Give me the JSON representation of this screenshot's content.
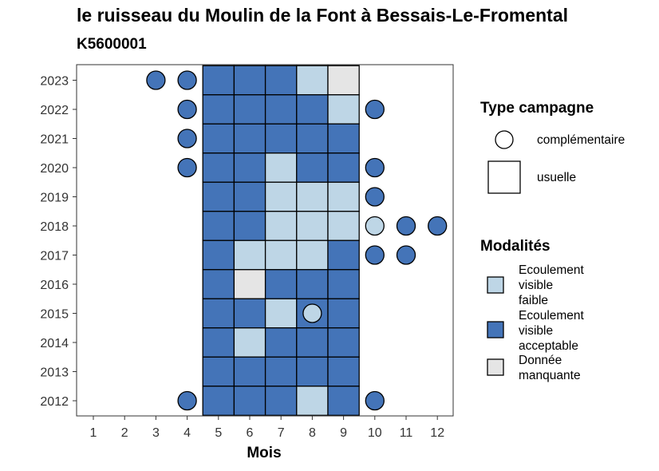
{
  "colors": {
    "faible": "#bed6e6",
    "acceptable": "#4474b8",
    "manquante": "#e5e5e5",
    "outline": "#000000",
    "panel_border": "#333333"
  },
  "chart_data": {
    "type": "heatmap",
    "title": "le ruisseau du Moulin de la Font à Bessais-Le-Fromental",
    "subtitle": "K5600001",
    "xlabel": "Mois",
    "ylabel": "",
    "x_ticks": [
      1,
      2,
      3,
      4,
      5,
      6,
      7,
      8,
      9,
      10,
      11,
      12
    ],
    "y_ticks": [
      2012,
      2013,
      2014,
      2015,
      2016,
      2017,
      2018,
      2019,
      2020,
      2021,
      2022,
      2023
    ],
    "grid": false,
    "legend_position": "right",
    "legends": [
      {
        "title": "Type campagne",
        "entries": [
          {
            "label": "complémentaire",
            "shape": "circle"
          },
          {
            "label": "usuelle",
            "shape": "square"
          }
        ]
      },
      {
        "title": "Modalités",
        "entries": [
          {
            "key": "faible",
            "label_lines": [
              "Ecoulement",
              "visible",
              "faible"
            ]
          },
          {
            "key": "acceptable",
            "label_lines": [
              "Ecoulement",
              "visible",
              "acceptable"
            ]
          },
          {
            "key": "manquante",
            "label_lines": [
              "Donnée",
              "manquante"
            ]
          }
        ]
      }
    ],
    "usuelle": [
      {
        "year": 2023,
        "month": 5,
        "value": "acceptable"
      },
      {
        "year": 2023,
        "month": 6,
        "value": "acceptable"
      },
      {
        "year": 2023,
        "month": 7,
        "value": "acceptable"
      },
      {
        "year": 2023,
        "month": 8,
        "value": "faible"
      },
      {
        "year": 2023,
        "month": 9,
        "value": "manquante"
      },
      {
        "year": 2022,
        "month": 5,
        "value": "acceptable"
      },
      {
        "year": 2022,
        "month": 6,
        "value": "acceptable"
      },
      {
        "year": 2022,
        "month": 7,
        "value": "acceptable"
      },
      {
        "year": 2022,
        "month": 8,
        "value": "acceptable"
      },
      {
        "year": 2022,
        "month": 9,
        "value": "faible"
      },
      {
        "year": 2021,
        "month": 5,
        "value": "acceptable"
      },
      {
        "year": 2021,
        "month": 6,
        "value": "acceptable"
      },
      {
        "year": 2021,
        "month": 7,
        "value": "acceptable"
      },
      {
        "year": 2021,
        "month": 8,
        "value": "acceptable"
      },
      {
        "year": 2021,
        "month": 9,
        "value": "acceptable"
      },
      {
        "year": 2020,
        "month": 5,
        "value": "acceptable"
      },
      {
        "year": 2020,
        "month": 6,
        "value": "acceptable"
      },
      {
        "year": 2020,
        "month": 7,
        "value": "faible"
      },
      {
        "year": 2020,
        "month": 8,
        "value": "acceptable"
      },
      {
        "year": 2020,
        "month": 9,
        "value": "acceptable"
      },
      {
        "year": 2019,
        "month": 5,
        "value": "acceptable"
      },
      {
        "year": 2019,
        "month": 6,
        "value": "acceptable"
      },
      {
        "year": 2019,
        "month": 7,
        "value": "faible"
      },
      {
        "year": 2019,
        "month": 8,
        "value": "faible"
      },
      {
        "year": 2019,
        "month": 9,
        "value": "faible"
      },
      {
        "year": 2018,
        "month": 5,
        "value": "acceptable"
      },
      {
        "year": 2018,
        "month": 6,
        "value": "acceptable"
      },
      {
        "year": 2018,
        "month": 7,
        "value": "faible"
      },
      {
        "year": 2018,
        "month": 8,
        "value": "faible"
      },
      {
        "year": 2018,
        "month": 9,
        "value": "faible"
      },
      {
        "year": 2017,
        "month": 5,
        "value": "acceptable"
      },
      {
        "year": 2017,
        "month": 6,
        "value": "faible"
      },
      {
        "year": 2017,
        "month": 7,
        "value": "faible"
      },
      {
        "year": 2017,
        "month": 8,
        "value": "faible"
      },
      {
        "year": 2017,
        "month": 9,
        "value": "acceptable"
      },
      {
        "year": 2016,
        "month": 5,
        "value": "acceptable"
      },
      {
        "year": 2016,
        "month": 6,
        "value": "manquante"
      },
      {
        "year": 2016,
        "month": 7,
        "value": "acceptable"
      },
      {
        "year": 2016,
        "month": 8,
        "value": "acceptable"
      },
      {
        "year": 2016,
        "month": 9,
        "value": "acceptable"
      },
      {
        "year": 2015,
        "month": 5,
        "value": "acceptable"
      },
      {
        "year": 2015,
        "month": 6,
        "value": "acceptable"
      },
      {
        "year": 2015,
        "month": 7,
        "value": "faible"
      },
      {
        "year": 2015,
        "month": 8,
        "value": "acceptable"
      },
      {
        "year": 2015,
        "month": 9,
        "value": "acceptable"
      },
      {
        "year": 2014,
        "month": 5,
        "value": "acceptable"
      },
      {
        "year": 2014,
        "month": 6,
        "value": "faible"
      },
      {
        "year": 2014,
        "month": 7,
        "value": "acceptable"
      },
      {
        "year": 2014,
        "month": 8,
        "value": "acceptable"
      },
      {
        "year": 2014,
        "month": 9,
        "value": "acceptable"
      },
      {
        "year": 2013,
        "month": 5,
        "value": "acceptable"
      },
      {
        "year": 2013,
        "month": 6,
        "value": "acceptable"
      },
      {
        "year": 2013,
        "month": 7,
        "value": "acceptable"
      },
      {
        "year": 2013,
        "month": 8,
        "value": "acceptable"
      },
      {
        "year": 2013,
        "month": 9,
        "value": "acceptable"
      },
      {
        "year": 2012,
        "month": 5,
        "value": "acceptable"
      },
      {
        "year": 2012,
        "month": 6,
        "value": "acceptable"
      },
      {
        "year": 2012,
        "month": 7,
        "value": "acceptable"
      },
      {
        "year": 2012,
        "month": 8,
        "value": "faible"
      },
      {
        "year": 2012,
        "month": 9,
        "value": "acceptable"
      }
    ],
    "complementaire": [
      {
        "year": 2023,
        "month": 3,
        "value": "acceptable"
      },
      {
        "year": 2023,
        "month": 4,
        "value": "acceptable"
      },
      {
        "year": 2022,
        "month": 4,
        "value": "acceptable"
      },
      {
        "year": 2022,
        "month": 10,
        "value": "acceptable"
      },
      {
        "year": 2021,
        "month": 4,
        "value": "acceptable"
      },
      {
        "year": 2020,
        "month": 4,
        "value": "acceptable"
      },
      {
        "year": 2020,
        "month": 10,
        "value": "acceptable"
      },
      {
        "year": 2019,
        "month": 10,
        "value": "acceptable"
      },
      {
        "year": 2018,
        "month": 10,
        "value": "faible"
      },
      {
        "year": 2018,
        "month": 11,
        "value": "acceptable"
      },
      {
        "year": 2018,
        "month": 12,
        "value": "acceptable"
      },
      {
        "year": 2017,
        "month": 10,
        "value": "acceptable"
      },
      {
        "year": 2017,
        "month": 11,
        "value": "acceptable"
      },
      {
        "year": 2015,
        "month": 8,
        "value": "faible"
      },
      {
        "year": 2012,
        "month": 4,
        "value": "acceptable"
      },
      {
        "year": 2012,
        "month": 10,
        "value": "acceptable"
      }
    ]
  }
}
